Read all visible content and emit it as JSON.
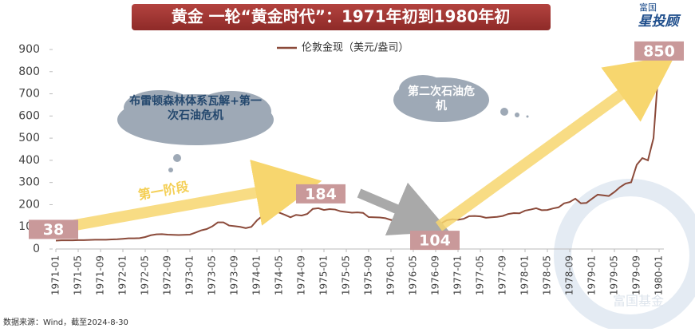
{
  "chart_data": {
    "type": "line",
    "title": "黄金 一轮“黄金时代”：1971年初到1980年初",
    "logo_top": "富国",
    "logo_main": "星投顾",
    "source": "数据来源：Wind，截至2024-8-30",
    "watermark": "富国基金",
    "annotations": [
      "布雷顿森林体系瓦解+第一次石油危机",
      "第一阶段",
      "第二次石油危机"
    ],
    "x": [
      "1971-01",
      "1971-02",
      "1971-03",
      "1971-04",
      "1971-05",
      "1971-06",
      "1971-07",
      "1971-08",
      "1971-09",
      "1971-10",
      "1971-11",
      "1971-12",
      "1972-01",
      "1972-02",
      "1972-03",
      "1972-04",
      "1972-05",
      "1972-06",
      "1972-07",
      "1972-08",
      "1972-09",
      "1972-10",
      "1972-11",
      "1972-12",
      "1973-01",
      "1973-02",
      "1973-03",
      "1973-04",
      "1973-05",
      "1973-06",
      "1973-07",
      "1973-08",
      "1973-09",
      "1973-10",
      "1973-11",
      "1973-12",
      "1974-01",
      "1974-02",
      "1974-03",
      "1974-04",
      "1974-05",
      "1974-06",
      "1974-07",
      "1974-08",
      "1974-09",
      "1974-10",
      "1974-11",
      "1974-12",
      "1975-01",
      "1975-02",
      "1975-03",
      "1975-04",
      "1975-05",
      "1975-06",
      "1975-07",
      "1975-08",
      "1975-09",
      "1975-10",
      "1975-11",
      "1975-12",
      "1976-01",
      "1976-02",
      "1976-03",
      "1976-04",
      "1976-05",
      "1976-06",
      "1976-07",
      "1976-08",
      "1976-09",
      "1976-10",
      "1976-11",
      "1976-12",
      "1977-01",
      "1977-02",
      "1977-03",
      "1977-04",
      "1977-05",
      "1977-06",
      "1977-07",
      "1977-08",
      "1977-09",
      "1977-10",
      "1977-11",
      "1977-12",
      "1978-01",
      "1978-02",
      "1978-03",
      "1978-04",
      "1978-05",
      "1978-06",
      "1978-07",
      "1978-08",
      "1978-09",
      "1978-10",
      "1978-11",
      "1978-12",
      "1979-01",
      "1979-02",
      "1979-03",
      "1979-04",
      "1979-05",
      "1979-06",
      "1979-07",
      "1979-08",
      "1979-09",
      "1979-10",
      "1979-11",
      "1979-12",
      "1980-01"
    ],
    "series": [
      {
        "name": "伦敦金现（美元/盎司）",
        "color": "#8b4a3a",
        "values": [
          38,
          39,
          39,
          39,
          40,
          40,
          41,
          42,
          42,
          42,
          43,
          44,
          46,
          48,
          48,
          49,
          54,
          62,
          66,
          67,
          65,
          64,
          63,
          64,
          65,
          74,
          84,
          90,
          102,
          120,
          120,
          106,
          103,
          100,
          94,
          100,
          129,
          150,
          168,
          172,
          164,
          154,
          143,
          154,
          151,
          158,
          181,
          184,
          176,
          180,
          178,
          170,
          167,
          164,
          165,
          163,
          144,
          143,
          142,
          139,
          131,
          131,
          132,
          128,
          126,
          126,
          118,
          104,
          114,
          116,
          130,
          134,
          132,
          136,
          148,
          149,
          147,
          141,
          143,
          145,
          149,
          158,
          162,
          161,
          173,
          178,
          184,
          175,
          176,
          183,
          188,
          206,
          212,
          227,
          206,
          208,
          227,
          245,
          242,
          239,
          257,
          279,
          295,
          301,
          380,
          410,
          400,
          500,
          850
        ],
        "value_labels": [
          "38",
          null,
          null,
          null,
          null,
          null,
          null,
          null,
          null,
          null,
          null,
          null,
          null,
          null,
          null,
          null,
          null,
          null,
          null,
          null,
          null,
          null,
          null,
          null,
          null,
          null,
          null,
          null,
          null,
          null,
          null,
          null,
          null,
          null,
          null,
          null,
          null,
          null,
          null,
          null,
          null,
          null,
          null,
          null,
          null,
          null,
          null,
          "184",
          null,
          null,
          null,
          null,
          null,
          null,
          null,
          null,
          null,
          null,
          null,
          null,
          null,
          null,
          null,
          null,
          null,
          null,
          null,
          "104",
          null,
          null,
          null,
          null,
          null,
          null,
          null,
          null,
          null,
          null,
          null,
          null,
          null,
          null,
          null,
          null,
          null,
          null,
          null,
          null,
          null,
          null,
          null,
          null,
          null,
          null,
          null,
          null,
          null,
          null,
          null,
          null,
          null,
          null,
          null,
          null,
          null,
          null,
          null,
          null,
          "850"
        ]
      }
    ],
    "xticks": [
      "1971-01",
      "1971-05",
      "1971-09",
      "1972-01",
      "1972-05",
      "1972-09",
      "1973-01",
      "1973-05",
      "1973-09",
      "1974-01",
      "1974-05",
      "1974-09",
      "1975-01",
      "1975-05",
      "1975-09",
      "1976-01",
      "1976-05",
      "1976-09",
      "1977-01",
      "1977-05",
      "1977-09",
      "1978-01",
      "1978-05",
      "1978-09",
      "1979-01",
      "1979-05",
      "1979-09",
      "1980-01"
    ],
    "ylim": [
      0,
      900
    ],
    "yticks": [
      0,
      100,
      200,
      300,
      400,
      500,
      600,
      700,
      800,
      900
    ]
  }
}
